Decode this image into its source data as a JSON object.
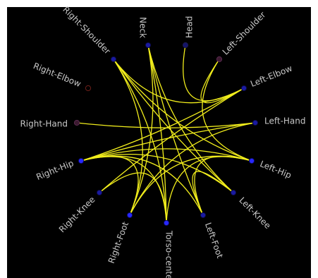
{
  "colors": {
    "background": "#000000",
    "edge": "#f2ee1c",
    "label": "#c8c8c8",
    "node_strong": "#1a1aa0",
    "node_bright": "#2828ff",
    "node_dark": "#3c1a30",
    "node_ring_dim": "#70201a"
  },
  "nodes": [
    {
      "id": "head",
      "label": "Head",
      "style": "dim_blue"
    },
    {
      "id": "left-shoulder",
      "label": "Left-Shoulder",
      "style": "dark"
    },
    {
      "id": "left-elbow",
      "label": "Left-Elbow",
      "style": "strong"
    },
    {
      "id": "left-hand",
      "label": "Left-Hand",
      "style": "strong"
    },
    {
      "id": "left-hip",
      "label": "Left-Hip",
      "style": "bright"
    },
    {
      "id": "left-knee",
      "label": "Left-Knee",
      "style": "strong"
    },
    {
      "id": "left-foot",
      "label": "Left-Foot",
      "style": "strong"
    },
    {
      "id": "torso-center",
      "label": "Torso-cente",
      "style": "bright"
    },
    {
      "id": "right-foot",
      "label": "Right-Foot",
      "style": "bright"
    },
    {
      "id": "right-knee",
      "label": "Right-Knee",
      "style": "strong"
    },
    {
      "id": "right-hip",
      "label": "Right-Hip",
      "style": "bright"
    },
    {
      "id": "right-hand",
      "label": "Right-Hand",
      "style": "dark"
    },
    {
      "id": "right-elbow",
      "label": "Right-Elbow",
      "style": "ring_dim"
    },
    {
      "id": "right-shoulder",
      "label": "Right-Shoulder",
      "style": "strong"
    },
    {
      "id": "neck",
      "label": "Neck",
      "style": "strong"
    }
  ],
  "edges": [
    [
      "head",
      "left-elbow"
    ],
    [
      "left-shoulder",
      "left-elbow"
    ],
    [
      "left-shoulder",
      "left-hip"
    ],
    [
      "right-shoulder",
      "left-elbow"
    ],
    [
      "right-shoulder",
      "left-hip"
    ],
    [
      "right-shoulder",
      "right-foot"
    ],
    [
      "right-shoulder",
      "torso-center"
    ],
    [
      "right-shoulder",
      "left-knee"
    ],
    [
      "neck",
      "left-foot"
    ],
    [
      "neck",
      "left-knee"
    ],
    [
      "neck",
      "right-foot"
    ],
    [
      "neck",
      "torso-center"
    ],
    [
      "left-elbow",
      "right-hip"
    ],
    [
      "left-elbow",
      "right-knee"
    ],
    [
      "left-hand",
      "right-hand"
    ],
    [
      "left-hand",
      "right-hip"
    ],
    [
      "left-hand",
      "right-foot"
    ],
    [
      "left-hip",
      "right-hip"
    ],
    [
      "left-hip",
      "left-foot"
    ],
    [
      "left-hip",
      "right-foot"
    ],
    [
      "left-hip",
      "torso-center"
    ],
    [
      "left-knee",
      "right-hip"
    ],
    [
      "left-knee",
      "left-foot"
    ],
    [
      "left-foot",
      "right-hip"
    ],
    [
      "torso-center",
      "right-hip"
    ],
    [
      "torso-center",
      "right-knee"
    ],
    [
      "right-foot",
      "right-hip"
    ]
  ]
}
